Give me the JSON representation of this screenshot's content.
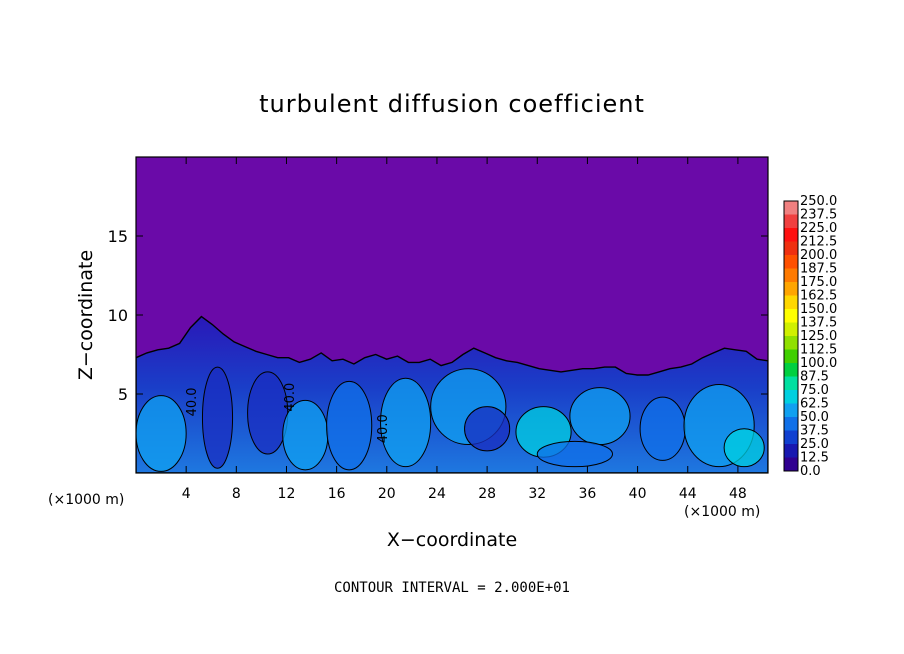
{
  "chart_data": {
    "type": "heatmap",
    "title": "turbulent diffusion coefficient",
    "xlabel": "X−coordinate",
    "ylabel": "Z−coordinate",
    "x_unit_left": "(×1000 m)",
    "x_unit_right": "(×1000 m)",
    "xlim": [
      0,
      50.4
    ],
    "ylim": [
      0,
      20
    ],
    "x_ticks": [
      4,
      8,
      12,
      16,
      20,
      24,
      28,
      32,
      36,
      40,
      44,
      48
    ],
    "y_ticks": [
      5,
      10,
      15
    ],
    "footer": "CONTOUR INTERVAL = 2.000E+01",
    "contour_labels": [
      "40.0",
      "40.0",
      "40.0"
    ],
    "colorbar": {
      "levels": [
        "250.0",
        "237.5",
        "225.0",
        "212.5",
        "200.0",
        "187.5",
        "175.0",
        "162.5",
        "150.0",
        "137.5",
        "125.0",
        "112.5",
        "100.0",
        "87.5",
        "75.0",
        "62.5",
        "50.0",
        "37.5",
        "25.0",
        "12.5",
        "0.0"
      ],
      "colors": [
        "#f08080",
        "#f04040",
        "#ff1010",
        "#f03010",
        "#ff5000",
        "#ff7a00",
        "#ffa500",
        "#ffd700",
        "#ffff00",
        "#d0f000",
        "#90e000",
        "#40d000",
        "#00d040",
        "#00e0a0",
        "#00d0e0",
        "#10a0f0",
        "#1070e8",
        "#1040d0",
        "#1818b0",
        "#300090"
      ],
      "background_color": "#6a0aa8"
    },
    "turbulent_layer_top": [
      7.3,
      7.6,
      7.8,
      7.9,
      8.2,
      9.2,
      9.9,
      9.4,
      8.8,
      8.3,
      8.0,
      7.7,
      7.5,
      7.3,
      7.3,
      7.0,
      7.2,
      7.6,
      7.1,
      7.2,
      6.9,
      7.3,
      7.5,
      7.2,
      7.4,
      7.0,
      7.0,
      7.2,
      6.8,
      7.0,
      7.5,
      7.9,
      7.6,
      7.3,
      7.1,
      7.0,
      6.8,
      6.6,
      6.5,
      6.4,
      6.5,
      6.6,
      6.6,
      6.7,
      6.7,
      6.3,
      6.2,
      6.2,
      6.4,
      6.6,
      6.7,
      6.9,
      7.3,
      7.6,
      7.9,
      7.8,
      7.7,
      7.2,
      7.1
    ]
  }
}
